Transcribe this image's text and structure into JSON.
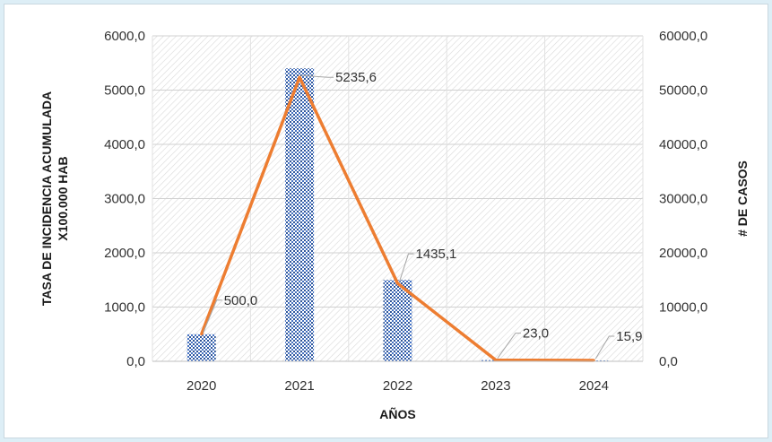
{
  "chart_data": {
    "type": "bar",
    "categories": [
      "2020",
      "2021",
      "2022",
      "2023",
      "2024"
    ],
    "series": [
      {
        "kind": "bar",
        "axis": "right",
        "values": [
          5000,
          54000,
          15000,
          230,
          159
        ]
      },
      {
        "kind": "line",
        "axis": "left",
        "values": [
          500.0,
          5235.6,
          1435.1,
          23.0,
          15.9
        ],
        "labels": [
          "500,0",
          "5235,6",
          "1435,1",
          "23,0",
          "15,9"
        ]
      }
    ],
    "xlabel": "AÑOS",
    "ylabel_left": [
      "TASA DE INCIDENCIA ACUMULADA",
      "X100.000 HAB"
    ],
    "ylabel_right": "# DE CASOS",
    "ylim_left": [
      0,
      6000
    ],
    "ylim_right": [
      0,
      60000
    ],
    "yticks_left": [
      "0,0",
      "1000,0",
      "2000,0",
      "3000,0",
      "4000,0",
      "5000,0",
      "6000,0"
    ],
    "yticks_right": [
      "0,0",
      "10000,0",
      "20000,0",
      "30000,0",
      "40000,0",
      "50000,0",
      "60000,0"
    ],
    "grid": true,
    "colors": {
      "bar": "#4472c4",
      "line": "#ed7d31",
      "leader": "#a6a6a6",
      "hatch": "#d9d9d9"
    }
  }
}
